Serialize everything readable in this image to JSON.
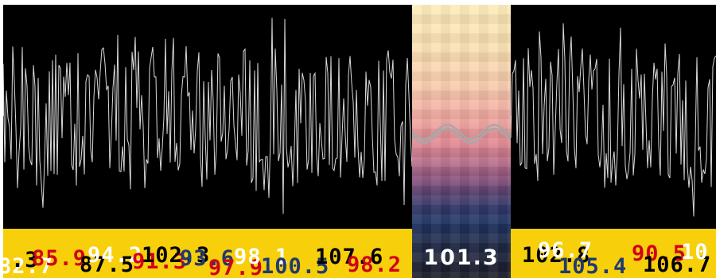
{
  "tuner": {
    "current_frequency": "101.3",
    "colors": {
      "band": "#f7cf0a",
      "scope_background": "#000000",
      "noise_trace": "#d9d9d9",
      "signal_trace": "#a8a8a8",
      "dial_red": "#d0021b",
      "dial_navy": "#1f3a72",
      "dial_white": "#ffffff",
      "dial_black": "#000000"
    },
    "dial_labels": [
      {
        "text": "82.7",
        "color": "white"
      },
      {
        "text": ".3",
        "color": "black"
      },
      {
        "text": "85.9",
        "color": "red"
      },
      {
        "text": "87.5",
        "color": "black"
      },
      {
        "text": "94.2",
        "color": "white"
      },
      {
        "text": "91.3",
        "color": "red"
      },
      {
        "text": "102.3",
        "color": "black"
      },
      {
        "text": "93.6",
        "color": "navy"
      },
      {
        "text": "97.9",
        "color": "red"
      },
      {
        "text": "98.1",
        "color": "white"
      },
      {
        "text": "100.5",
        "color": "navy"
      },
      {
        "text": "107.6",
        "color": "black"
      },
      {
        "text": "98.2",
        "color": "red"
      },
      {
        "text": "102.8",
        "color": "black"
      },
      {
        "text": "96.7",
        "color": "white"
      },
      {
        "text": "105.4",
        "color": "navy"
      },
      {
        "text": "90.5",
        "color": "red"
      },
      {
        "text": "106.7",
        "color": "black"
      },
      {
        "text": "10",
        "color": "white"
      }
    ]
  }
}
